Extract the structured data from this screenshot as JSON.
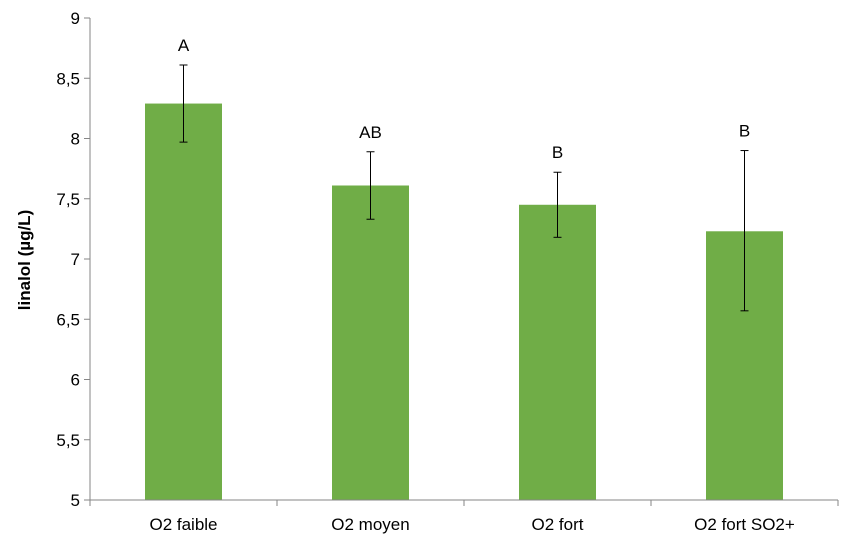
{
  "chart_data": {
    "type": "bar",
    "title": "",
    "xlabel": "",
    "ylabel": "linalol (µg/L)",
    "ylim": [
      5,
      9
    ],
    "yticks": [
      5,
      5.5,
      6,
      6.5,
      7,
      7.5,
      8,
      8.5,
      9
    ],
    "ytick_labels": [
      "5",
      "5,5",
      "6",
      "6,5",
      "7",
      "7,5",
      "8",
      "8,5",
      "9"
    ],
    "categories": [
      "O2 faible",
      "O2 moyen",
      "O2 fort",
      "O2 fort SO2+"
    ],
    "values": [
      8.29,
      7.61,
      7.45,
      7.23
    ],
    "error_low": [
      7.97,
      7.33,
      7.18,
      6.57
    ],
    "error_high": [
      8.61,
      7.89,
      7.72,
      7.9
    ],
    "annotations": [
      "A",
      "AB",
      "B",
      "B"
    ],
    "bar_color": "#70ad47",
    "grid": false,
    "legend": "none"
  }
}
